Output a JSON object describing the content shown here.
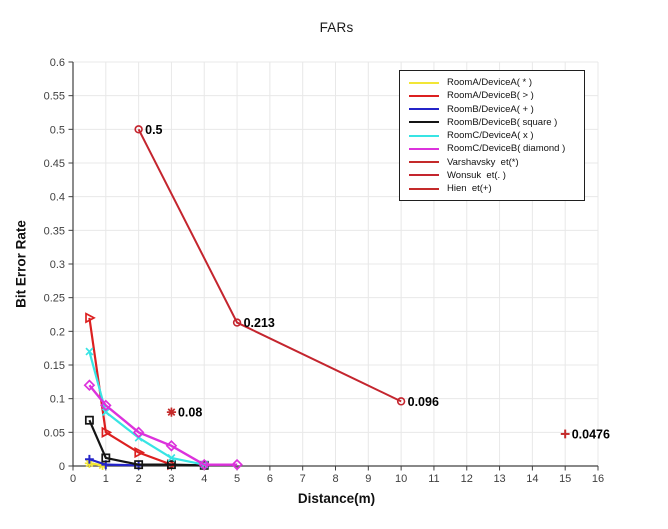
{
  "figure": {
    "title": "FARs",
    "x_label": "Distance(m)",
    "y_label": "Bit Error Rate"
  },
  "chart_data": {
    "type": "line",
    "title": "FARs",
    "xlabel": "Distance(m)",
    "ylabel": "Bit Error Rate",
    "xlim": [
      0,
      16
    ],
    "ylim": [
      0,
      0.6
    ],
    "x_ticks": [
      0,
      1,
      2,
      3,
      4,
      5,
      6,
      7,
      8,
      9,
      10,
      11,
      12,
      13,
      14,
      15,
      16
    ],
    "y_ticks": [
      0,
      0.05,
      0.1,
      0.15,
      0.2,
      0.25,
      0.3,
      0.35,
      0.4,
      0.45,
      0.5,
      0.55,
      0.6
    ],
    "grid": true,
    "legend_position": "top-right",
    "colors": {
      "grid": "#e8e8e8",
      "axis": "#404040",
      "tick_label": "#3f3f3f",
      "annotation": "#000000"
    },
    "series": [
      {
        "name": "RoomA/DeviceA( * )",
        "color": "#f2e636",
        "marker": "star",
        "line_width": 2.4,
        "points": [
          [
            0.5,
            0.004
          ],
          [
            0.9,
            0.001
          ]
        ]
      },
      {
        "name": "RoomA/DeviceB( > )",
        "color": "#dc2020",
        "marker": "triright",
        "line_width": 2.2,
        "points": [
          [
            0.5,
            0.22
          ],
          [
            1,
            0.05
          ],
          [
            2,
            0.02
          ],
          [
            3,
            0.002
          ]
        ]
      },
      {
        "name": "RoomB/DeviceA( + )",
        "color": "#2424c8",
        "marker": "plus",
        "line_width": 2.2,
        "points": [
          [
            0.5,
            0.01
          ],
          [
            1,
            0.002
          ],
          [
            2,
            0.001
          ]
        ]
      },
      {
        "name": "RoomB/DeviceB( square )",
        "color": "#141414",
        "marker": "square",
        "line_width": 2.2,
        "points": [
          [
            0.5,
            0.068
          ],
          [
            1,
            0.012
          ],
          [
            2,
            0.002
          ],
          [
            3,
            0.002
          ],
          [
            4,
            0.001
          ]
        ]
      },
      {
        "name": "RoomC/DeviceA( x )",
        "color": "#38e4e4",
        "marker": "x",
        "line_width": 2.2,
        "points": [
          [
            0.5,
            0.17
          ],
          [
            1,
            0.08
          ],
          [
            2,
            0.042
          ],
          [
            3,
            0.012
          ],
          [
            4,
            0.002
          ]
        ]
      },
      {
        "name": "RoomC/DeviceB( diamond )",
        "color": "#dc32dc",
        "marker": "diamond",
        "line_width": 2.4,
        "points": [
          [
            0.5,
            0.12
          ],
          [
            1,
            0.09
          ],
          [
            2,
            0.05
          ],
          [
            3,
            0.03
          ],
          [
            4,
            0.002
          ],
          [
            5,
            0.002
          ]
        ]
      },
      {
        "name": "Varshavsky  et(*)",
        "color": "#c42a2a",
        "marker": "star",
        "line_width": 2,
        "points": [
          [
            3,
            0.08
          ]
        ]
      },
      {
        "name": "Wonsuk  et(. )",
        "color": "#c4252e",
        "marker": "circle",
        "line_width": 2,
        "points": [
          [
            2,
            0.5
          ],
          [
            5,
            0.213
          ],
          [
            10,
            0.096
          ]
        ]
      },
      {
        "name": "Hien  et(+)",
        "color": "#c42a2a",
        "marker": "plus",
        "line_width": 2,
        "points": [
          [
            15,
            0.0476
          ]
        ]
      }
    ],
    "point_labels": [
      {
        "text": "0.5",
        "x": 2,
        "y": 0.5
      },
      {
        "text": "0.213",
        "x": 5,
        "y": 0.213
      },
      {
        "text": "0.096",
        "x": 10,
        "y": 0.096
      },
      {
        "text": "0.08",
        "x": 3,
        "y": 0.08
      },
      {
        "text": "0.0476",
        "x": 15,
        "y": 0.0476
      }
    ]
  }
}
